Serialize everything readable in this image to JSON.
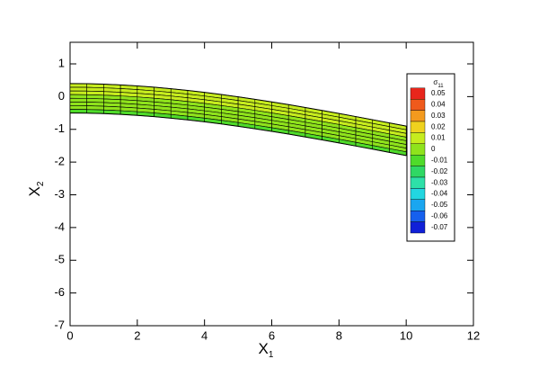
{
  "chart_data": {
    "type": "mesh",
    "xlabel": {
      "base": "X",
      "sub": "1"
    },
    "ylabel": {
      "base": "X",
      "sub": "2"
    },
    "xlim": [
      0,
      12
    ],
    "ylim": [
      -7,
      1.66
    ],
    "xticks": [
      0,
      2,
      4,
      6,
      8,
      10,
      12
    ],
    "yticks": [
      1,
      0,
      -1,
      -2,
      -3,
      -4,
      -5,
      -6,
      -7
    ],
    "mesh": {
      "x": [
        0,
        0.5,
        1,
        1.5,
        2,
        2.5,
        3,
        3.5,
        4,
        4.5,
        5,
        5.5,
        6,
        6.5,
        7,
        7.5,
        8,
        8.5,
        9,
        9.5,
        10
      ],
      "y_top": [
        0.4,
        0.395,
        0.381,
        0.358,
        0.327,
        0.288,
        0.242,
        0.189,
        0.13,
        0.064,
        -0.006,
        -0.082,
        -0.162,
        -0.245,
        -0.333,
        -0.423,
        -0.515,
        -0.61,
        -0.706,
        -0.803,
        -0.9
      ],
      "y_bottom": [
        -0.5,
        -0.505,
        -0.519,
        -0.542,
        -0.573,
        -0.612,
        -0.658,
        -0.711,
        -0.77,
        -0.836,
        -0.906,
        -0.982,
        -1.062,
        -1.145,
        -1.233,
        -1.323,
        -1.415,
        -1.51,
        -1.606,
        -1.703,
        -1.8
      ],
      "row_stress": [
        0.018,
        0.015,
        0.012,
        0.008,
        0.005,
        0.003,
        0.001,
        -0.002
      ],
      "edge_color": "#000000"
    },
    "legend": {
      "title": {
        "base": "σ",
        "sub": "11"
      },
      "levels": [
        0.05,
        0.04,
        0.03,
        0.02,
        0.01,
        0,
        -0.01,
        -0.02,
        -0.03,
        -0.04,
        -0.05,
        -0.06,
        -0.07
      ],
      "colors": [
        "#e8261c",
        "#ef5a1c",
        "#f39a1e",
        "#efd21e",
        "#c6ec1e",
        "#8fe31c",
        "#4fdb2a",
        "#2fd864",
        "#2ee0a8",
        "#22d6e0",
        "#1aa6f0",
        "#1660ee",
        "#1020d8"
      ]
    }
  }
}
